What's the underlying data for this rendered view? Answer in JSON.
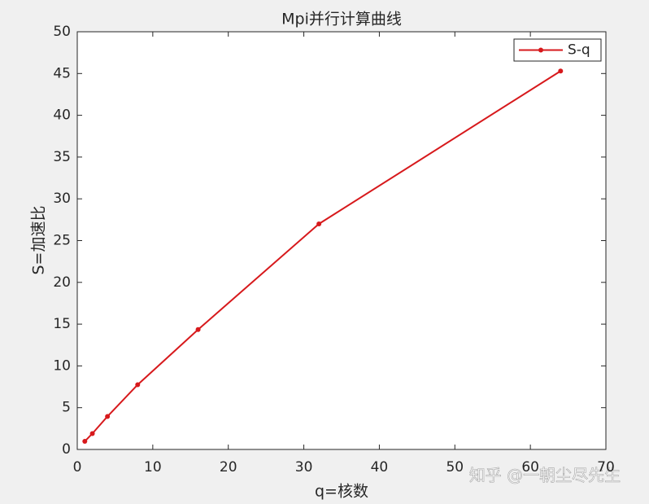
{
  "chart_data": {
    "type": "line",
    "title": "Mpi并行计算曲线",
    "xlabel": "q=核数",
    "ylabel": "S=加速比",
    "x": [
      1,
      2,
      4,
      8,
      16,
      32,
      64
    ],
    "series": [
      {
        "name": "S-q",
        "color": "#d7191c",
        "values": [
          0.97,
          1.9,
          3.95,
          7.75,
          14.35,
          27.0,
          45.3
        ]
      }
    ],
    "xlim": [
      0,
      70
    ],
    "xticks": [
      0,
      10,
      20,
      30,
      40,
      50,
      60,
      70
    ],
    "ylim": [
      0,
      50
    ],
    "yticks": [
      0,
      5,
      10,
      15,
      20,
      25,
      30,
      35,
      40,
      45,
      50
    ],
    "legend": "upper right",
    "grid": false
  },
  "watermark": "知乎 @一朝尘尽先生"
}
